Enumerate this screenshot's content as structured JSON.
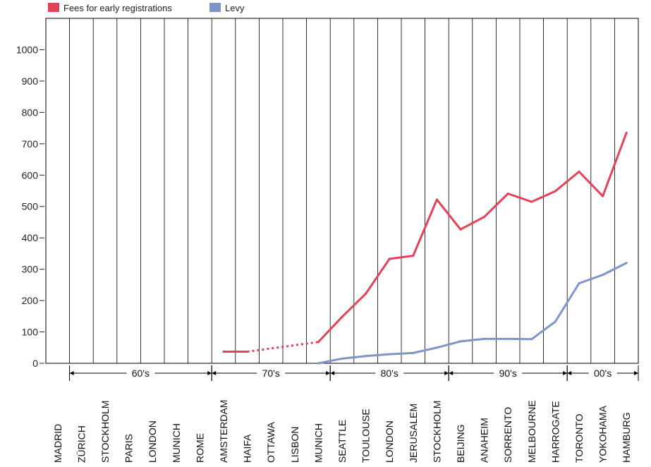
{
  "colors": {
    "fees": "#e0435a",
    "levy": "#7f95c8",
    "grid": "#000000"
  },
  "chart_data": {
    "type": "line",
    "categories": [
      "MADRID",
      "ZÜRICH",
      "STOCKHOLM",
      "PARIS",
      "LONDON",
      "MUNICH",
      "ROME",
      "AMSTERDAM",
      "HAIFA",
      "OTTAWA",
      "LISBON",
      "MUNICH",
      "SEATTLE",
      "TOULOUSE",
      "LONDON",
      "JERUSALEM",
      "STOCKHOLM",
      "BEIJING",
      "ANAHEIM",
      "SORRENTO",
      "MELBOURNE",
      "HARROGATE",
      "TORONTO",
      "YOKOHAMA",
      "HAMBURG"
    ],
    "series": [
      {
        "name": "Fees for early registrations",
        "color": "#e0435a",
        "values": [
          null,
          null,
          null,
          null,
          null,
          null,
          null,
          37,
          37,
          null,
          null,
          68,
          148,
          222,
          333,
          343,
          522,
          427,
          467,
          541,
          515,
          549,
          611,
          533,
          735
        ],
        "dashed_segments": [
          [
            8,
            11
          ]
        ]
      },
      {
        "name": "Levy",
        "color": "#7f95c8",
        "values": [
          null,
          null,
          null,
          null,
          null,
          null,
          null,
          null,
          null,
          null,
          null,
          0,
          15,
          23,
          29,
          33,
          50,
          70,
          78,
          78,
          77,
          133,
          255,
          282,
          320
        ]
      }
    ],
    "yticks": [
      0,
      100,
      200,
      300,
      400,
      500,
      600,
      700,
      800,
      900,
      1000
    ],
    "ylim": [
      0,
      1100
    ],
    "decades": [
      {
        "label": "60's",
        "start": 1,
        "end": 7
      },
      {
        "label": "70's",
        "start": 7,
        "end": 12
      },
      {
        "label": "80's",
        "start": 12,
        "end": 17
      },
      {
        "label": "90's",
        "start": 17,
        "end": 22
      },
      {
        "label": "00's",
        "start": 22,
        "end": 25
      }
    ],
    "legend_position": "top-left",
    "grid": "vertical"
  }
}
